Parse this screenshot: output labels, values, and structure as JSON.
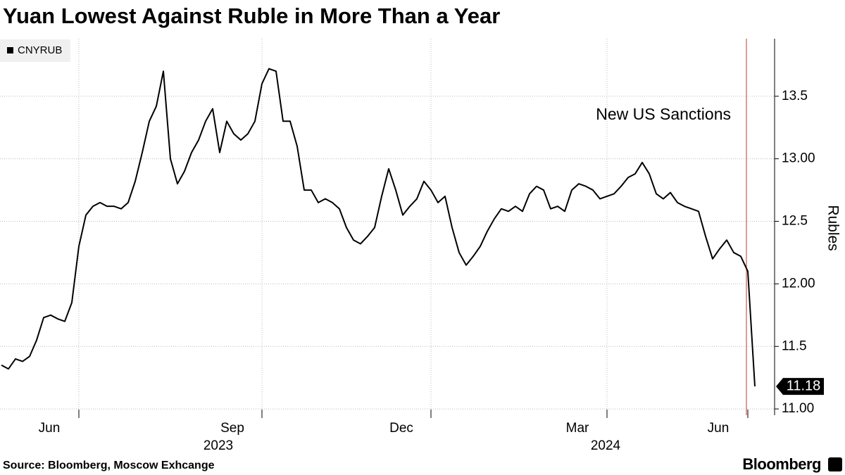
{
  "chart_data": {
    "type": "line",
    "title": "Yuan Lowest Against Ruble in More Than a Year",
    "source": "Source: Bloomberg, Moscow Exhcange",
    "brand": "Bloomberg",
    "y_axis_label": "Rubles",
    "annotations": [
      {
        "text": "New US Sanctions"
      }
    ],
    "x_group_labels": [
      "2023",
      "2024"
    ],
    "categories": [
      null,
      null,
      null,
      null,
      null,
      null,
      null,
      null,
      null,
      null,
      null,
      "Jun",
      null,
      null,
      null,
      null,
      null,
      null,
      null,
      null,
      null,
      null,
      null,
      null,
      null,
      null,
      null,
      null,
      null,
      null,
      null,
      null,
      null,
      null,
      null,
      null,
      null,
      "Sep",
      null,
      null,
      null,
      null,
      null,
      null,
      null,
      null,
      null,
      null,
      null,
      null,
      null,
      null,
      null,
      null,
      null,
      null,
      null,
      null,
      null,
      null,
      null,
      "Dec",
      null,
      null,
      null,
      null,
      null,
      null,
      null,
      null,
      null,
      null,
      null,
      null,
      null,
      null,
      null,
      null,
      null,
      null,
      null,
      null,
      null,
      null,
      null,
      null,
      "Mar",
      null,
      null,
      null,
      null,
      null,
      null,
      null,
      null,
      null,
      null,
      null,
      null,
      null,
      null,
      null,
      null,
      null,
      null,
      null,
      "Jun",
      null
    ],
    "series": [
      {
        "name": "CNYRUB",
        "color": "#000000",
        "values": [
          11.35,
          11.32,
          11.4,
          11.38,
          11.42,
          11.55,
          11.73,
          11.75,
          11.72,
          11.7,
          11.85,
          12.3,
          12.55,
          12.62,
          12.65,
          12.62,
          12.62,
          12.6,
          12.65,
          12.82,
          13.05,
          13.3,
          13.42,
          13.7,
          13.0,
          12.8,
          12.9,
          13.05,
          13.15,
          13.3,
          13.4,
          13.05,
          13.3,
          13.2,
          13.15,
          13.2,
          13.3,
          13.6,
          13.72,
          13.7,
          13.3,
          13.3,
          13.1,
          12.75,
          12.75,
          12.65,
          12.68,
          12.65,
          12.6,
          12.45,
          12.35,
          12.32,
          12.38,
          12.45,
          12.7,
          12.92,
          12.75,
          12.55,
          12.62,
          12.68,
          12.82,
          12.75,
          12.65,
          12.7,
          12.45,
          12.25,
          12.15,
          12.22,
          12.3,
          12.42,
          12.52,
          12.6,
          12.58,
          12.62,
          12.58,
          12.72,
          12.78,
          12.75,
          12.6,
          12.62,
          12.58,
          12.75,
          12.8,
          12.78,
          12.75,
          12.68,
          12.7,
          12.72,
          12.78,
          12.85,
          12.88,
          12.97,
          12.88,
          12.72,
          12.68,
          12.73,
          12.65,
          12.62,
          12.6,
          12.58,
          12.38,
          12.2,
          12.28,
          12.35,
          12.25,
          12.22,
          12.1,
          11.18
        ]
      }
    ],
    "ylim": [
      10.95,
      13.96
    ],
    "yticks": [
      {
        "value": 11,
        "label": "11.00"
      },
      11.5,
      {
        "value": 12,
        "label": "12.00"
      },
      12.5,
      {
        "value": 13,
        "label": "13.00"
      },
      13.5
    ],
    "grid": true
  }
}
